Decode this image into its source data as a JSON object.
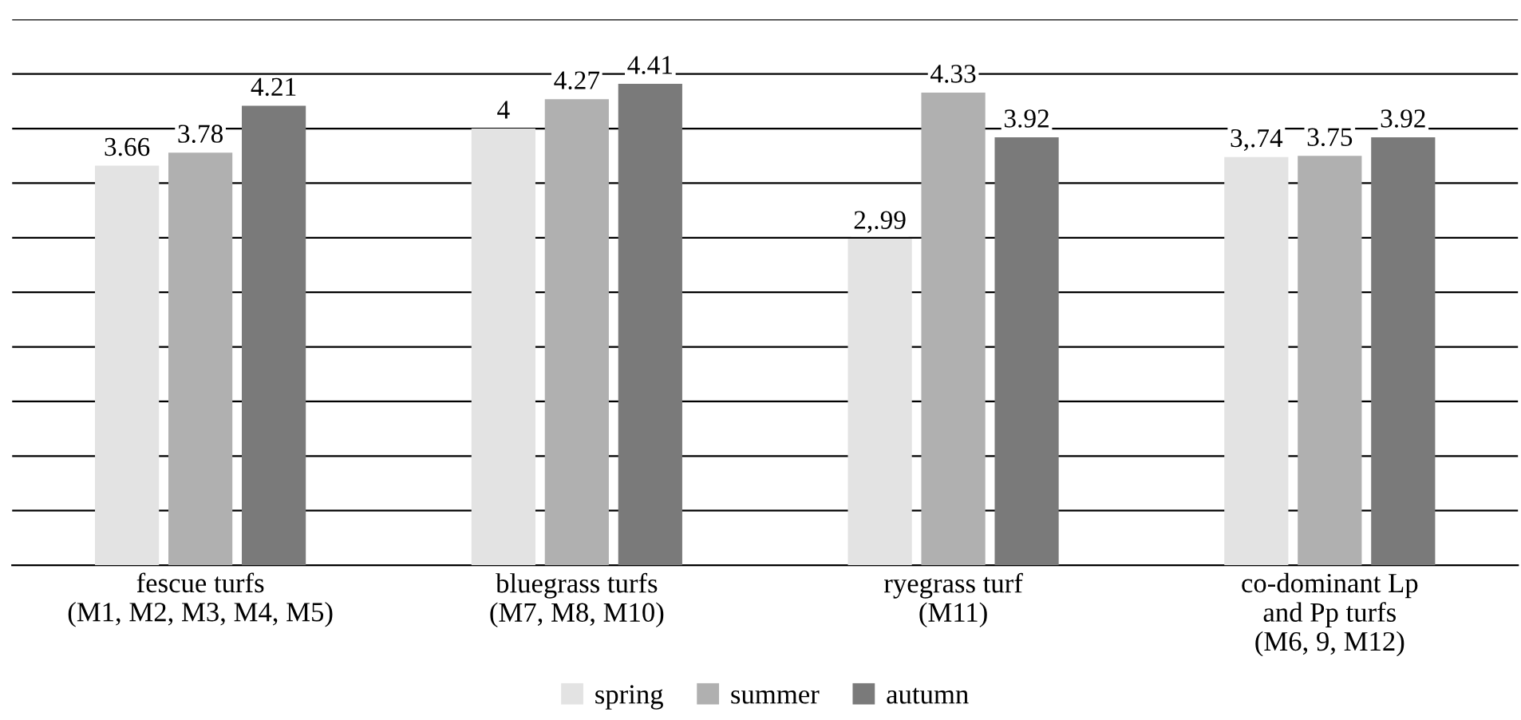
{
  "chart_data": {
    "type": "bar",
    "categories": [
      "fescue turfs\n(M1, M2, M3, M4, M5)",
      "bluegrass turfs\n(M7, M8, M10)",
      "ryegrass turf\n(M11)",
      "co-dominant Lp\nand Pp turfs\n(M6, 9, M12)"
    ],
    "series": [
      {
        "name": "spring",
        "color": "#e3e3e3",
        "values": [
          3.66,
          4,
          2.99,
          3.74
        ],
        "value_labels": [
          "3.66",
          "4",
          "2,.99",
          "3,.74"
        ]
      },
      {
        "name": "summer",
        "color": "#b0b0b0",
        "values": [
          3.78,
          4.27,
          4.33,
          3.75
        ],
        "value_labels": [
          "3.78",
          "4.27",
          "4.33",
          "3.75"
        ]
      },
      {
        "name": "autumn",
        "color": "#7a7a7a",
        "values": [
          4.21,
          4.41,
          3.92,
          3.92
        ],
        "value_labels": [
          "4.21",
          "4.41",
          "3.92",
          "3.92"
        ]
      }
    ],
    "ylim": [
      0,
      5
    ],
    "yticks": [
      {
        "value": 0,
        "label": null
      },
      {
        "value": 0.5,
        "label": null
      },
      {
        "value": 1,
        "label": null
      },
      {
        "value": 1.5,
        "label": null
      },
      {
        "value": 2,
        "label": null
      },
      {
        "value": 2.5,
        "label": null
      },
      {
        "value": 3,
        "label": null
      },
      {
        "value": 3.5,
        "label": null
      },
      {
        "value": 4,
        "label": null
      },
      {
        "value": 4.5,
        "label": null
      },
      {
        "value": 5,
        "label": null
      }
    ],
    "tick_labels": "x",
    "grid": "y",
    "legend": "bottom"
  }
}
